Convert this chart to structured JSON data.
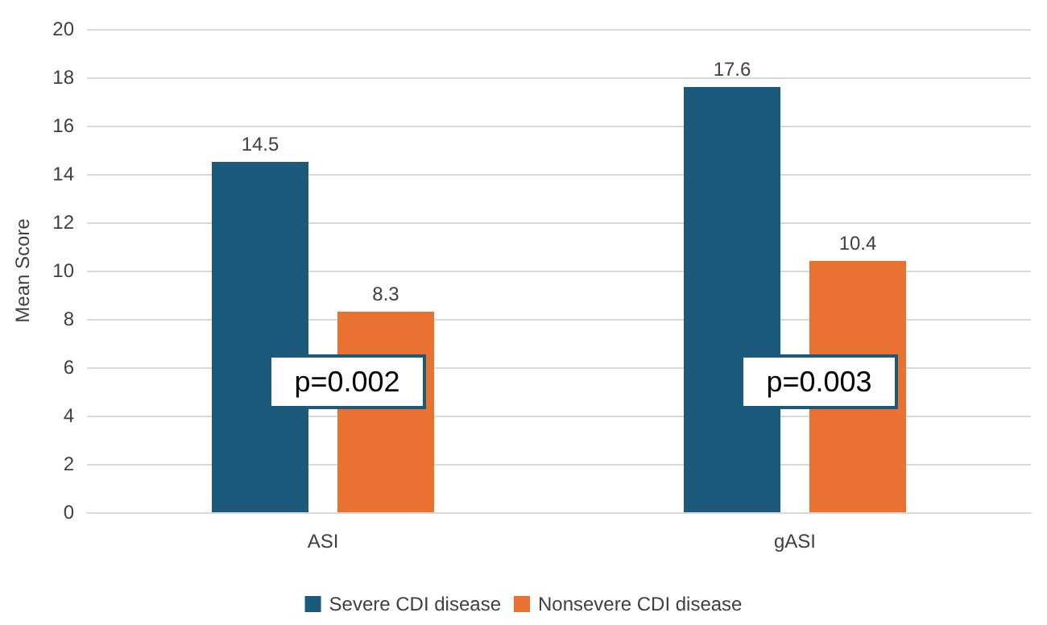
{
  "chart_data": {
    "type": "bar",
    "ylabel": "Mean Score",
    "categories": [
      "ASI",
      "gASI"
    ],
    "series": [
      {
        "name": "Severe CDI disease",
        "color": "#1b5a7a",
        "values": [
          14.5,
          17.6
        ]
      },
      {
        "name": "Nonsevere CDI disease",
        "color": "#e97132",
        "values": [
          8.3,
          10.4
        ]
      }
    ],
    "ylim": [
      0,
      20
    ],
    "yticks": [
      0,
      2,
      4,
      6,
      8,
      10,
      12,
      14,
      16,
      18,
      20
    ],
    "grid": "y",
    "legend": "bottom",
    "data_labels": true,
    "annotations": [
      "p=0.002",
      "p=0.003"
    ]
  }
}
